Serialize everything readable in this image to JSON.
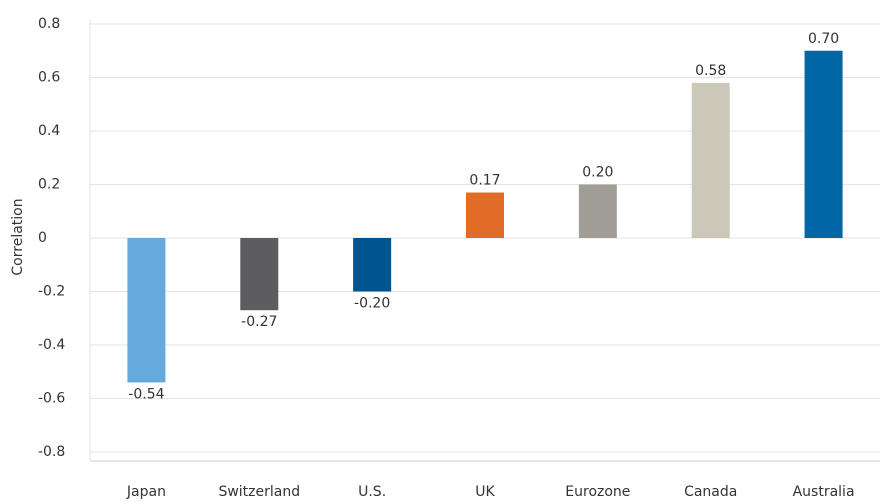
{
  "chart_data": {
    "type": "bar",
    "ylabel": "Correlation",
    "categories": [
      "Japan",
      "Switzerland",
      "U.S.",
      "UK",
      "Eurozone",
      "Canada",
      "Australia"
    ],
    "values": [
      -0.54,
      -0.27,
      -0.2,
      0.17,
      0.2,
      0.58,
      0.7
    ],
    "value_labels": [
      "-0.54",
      "-0.27",
      "-0.20",
      "0.17",
      "0.20",
      "0.58",
      "0.70"
    ],
    "colors": [
      "#65a9dd",
      "#5d5d5f",
      "#00548f",
      "#e06c28",
      "#a19e98",
      "#cbc8b9",
      "#0066a6"
    ],
    "ylim": [
      -0.8,
      0.8
    ],
    "yticks": [
      -0.8,
      -0.6,
      -0.4,
      -0.2,
      0,
      0.2,
      0.4,
      0.6,
      0.8
    ],
    "grid": true
  }
}
